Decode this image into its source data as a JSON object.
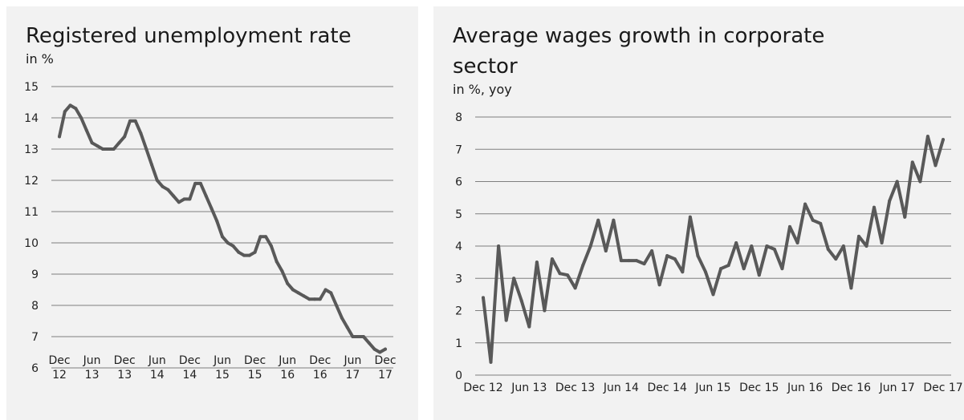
{
  "charts": [
    {
      "title": "Registered unemployment rate",
      "subtitle": "in %",
      "chart_data": {
        "type": "line",
        "title": "Registered unemployment rate",
        "subtitle": "in %",
        "xlabel": "",
        "ylabel": "",
        "ylim": [
          6,
          15
        ],
        "yticks": [
          6,
          7,
          8,
          9,
          10,
          11,
          12,
          13,
          14,
          15
        ],
        "xtick_labels": [
          [
            "Dec",
            "12"
          ],
          [
            "Jun",
            "13"
          ],
          [
            "Dec",
            "13"
          ],
          [
            "Jun",
            "14"
          ],
          [
            "Dec",
            "14"
          ],
          [
            "Jun",
            "15"
          ],
          [
            "Dec",
            "15"
          ],
          [
            "Jun",
            "16"
          ],
          [
            "Dec",
            "16"
          ],
          [
            "Jun",
            "17"
          ],
          [
            "Dec",
            "17"
          ]
        ],
        "x_start": "Dec 2012",
        "x_end": "Dec 2017",
        "grid": true,
        "series": [
          {
            "color": "#595959",
            "values": [
              13.4,
              14.2,
              14.4,
              14.3,
              14.0,
              13.6,
              13.2,
              13.1,
              13.0,
              13.0,
              13.0,
              13.2,
              13.4,
              13.9,
              13.9,
              13.5,
              13.0,
              12.5,
              12.0,
              11.8,
              11.7,
              11.5,
              11.3,
              11.4,
              11.4,
              11.9,
              11.9,
              11.5,
              11.1,
              10.7,
              10.2,
              10.0,
              9.9,
              9.7,
              9.6,
              9.6,
              9.7,
              10.2,
              10.2,
              9.9,
              9.4,
              9.1,
              8.7,
              8.5,
              8.4,
              8.3,
              8.2,
              8.2,
              8.2,
              8.5,
              8.4,
              8.0,
              7.6,
              7.3,
              7.0,
              7.0,
              7.0,
              6.8,
              6.6,
              6.5,
              6.6
            ]
          }
        ]
      }
    },
    {
      "title": "Average wages growth in corporate sector",
      "subtitle": "in %, yoy",
      "chart_data": {
        "type": "line",
        "title": "Average wages growth in corporate sector",
        "subtitle": "in %, yoy",
        "xlabel": "",
        "ylabel": "",
        "ylim": [
          0,
          8
        ],
        "yticks": [
          0,
          1,
          2,
          3,
          4,
          5,
          6,
          7,
          8
        ],
        "xtick_labels": [
          "Dec 12",
          "Jun 13",
          "Dec 13",
          "Jun 14",
          "Dec 14",
          "Jun 15",
          "Dec 15",
          "Jun 16",
          "Dec 16",
          "Jun 17",
          "Dec 17"
        ],
        "x_start": "Dec 2012",
        "x_end": "Dec 2017",
        "grid": true,
        "series": [
          {
            "color": "#595959",
            "values": [
              2.4,
              0.4,
              4.0,
              1.7,
              3.0,
              2.3,
              1.5,
              3.5,
              2.0,
              3.6,
              3.15,
              3.1,
              2.7,
              3.4,
              4.0,
              4.8,
              3.85,
              4.8,
              3.55,
              3.55,
              3.55,
              3.45,
              3.85,
              2.8,
              3.7,
              3.6,
              3.2,
              4.9,
              3.7,
              3.2,
              2.5,
              3.3,
              3.4,
              4.1,
              3.3,
              4.0,
              3.1,
              4.0,
              3.9,
              3.3,
              4.6,
              4.1,
              5.3,
              4.8,
              4.7,
              3.9,
              3.6,
              4.0,
              2.7,
              4.3,
              4.0,
              5.2,
              4.1,
              5.4,
              6.0,
              4.9,
              6.6,
              6.0,
              7.4,
              6.5,
              7.3
            ]
          }
        ]
      }
    }
  ]
}
